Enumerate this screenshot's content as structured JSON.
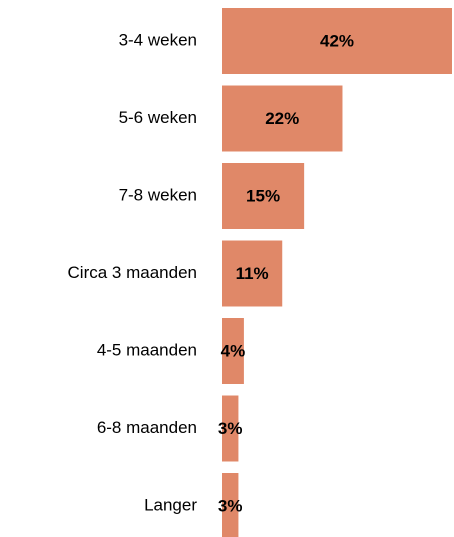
{
  "chart_data": {
    "type": "bar",
    "orientation": "horizontal",
    "categories": [
      "3-4 weken",
      "5-6 weken",
      "7-8 weken",
      "Circa 3 maanden",
      "4-5 maanden",
      "6-8 maanden",
      "Langer"
    ],
    "values": [
      42,
      22,
      15,
      11,
      4,
      3,
      3
    ],
    "value_labels": [
      "42%",
      "22%",
      "15%",
      "11%",
      "4%",
      "3%",
      "3%"
    ],
    "color": "#e08868"
  }
}
